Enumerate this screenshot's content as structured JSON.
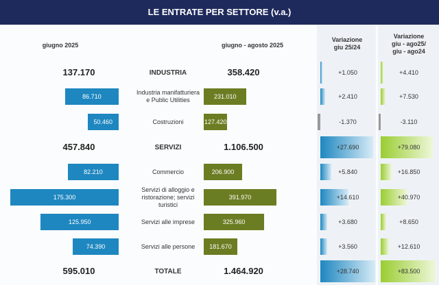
{
  "title": "LE ENTRATE PER SETTORE (v.a.)",
  "headers": {
    "june": [
      "giugno 2025"
    ],
    "period": [
      "giugno  - agosto 2025"
    ],
    "var1": [
      "Variazione",
      "giu 25/24"
    ],
    "var2": [
      "Variazione",
      "giu - ago25/",
      "giu - ago24"
    ]
  },
  "rows": [
    {
      "label": [
        "INDUSTRIA"
      ],
      "total": true,
      "june": 137170,
      "june_label": "137.170",
      "period": 358420,
      "period_label": "358.420",
      "var1": 1050,
      "var1_label": "+1.050",
      "var2": 4410,
      "var2_label": "+4.410"
    },
    {
      "label": [
        "Industria manifatturiera",
        "e Public Utilities"
      ],
      "total": false,
      "june": 86710,
      "june_label": "86.710",
      "period": 231010,
      "period_label": "231.010",
      "var1": 2410,
      "var1_label": "+2.410",
      "var2": 7530,
      "var2_label": "+7.530"
    },
    {
      "label": [
        "Costruzioni"
      ],
      "total": false,
      "june": 50460,
      "june_label": "50.460",
      "period": 127420,
      "period_label": "127.420",
      "var1": -1370,
      "var1_label": "-1.370",
      "var2": -3110,
      "var2_label": "-3.110"
    },
    {
      "label": [
        "SERVIZI"
      ],
      "total": true,
      "june": 457840,
      "june_label": "457.840",
      "period": 1106500,
      "period_label": "1.106.500",
      "var1": 27690,
      "var1_label": "+27.690",
      "var2": 79080,
      "var2_label": "+79.080"
    },
    {
      "label": [
        "Commercio"
      ],
      "total": false,
      "june": 82210,
      "june_label": "82.210",
      "period": 206900,
      "period_label": "206.900",
      "var1": 5840,
      "var1_label": "+5.840",
      "var2": 16850,
      "var2_label": "+16.850"
    },
    {
      "label": [
        "Servizi di alloggio e",
        "ristorazione; servizi",
        "turistici"
      ],
      "total": false,
      "june": 175300,
      "june_label": "175.300",
      "period": 391970,
      "period_label": "391.970",
      "var1": 14610,
      "var1_label": "+14.610",
      "var2": 40970,
      "var2_label": "+40.970"
    },
    {
      "label": [
        "Servizi alle imprese"
      ],
      "total": false,
      "june": 125950,
      "june_label": "125.950",
      "period": 325960,
      "period_label": "325.960",
      "var1": 3680,
      "var1_label": "+3.680",
      "var2": 8650,
      "var2_label": "+8.650"
    },
    {
      "label": [
        "Servizi alle persone"
      ],
      "total": false,
      "june": 74390,
      "june_label": "74.390",
      "period": 181670,
      "period_label": "181.670",
      "var1": 3560,
      "var1_label": "+3.560",
      "var2": 12610,
      "var2_label": "+12.610"
    },
    {
      "label": [
        "TOTALE"
      ],
      "total": true,
      "june": 595010,
      "june_label": "595.010",
      "period": 1464920,
      "period_label": "1.464.920",
      "var1": 28740,
      "var1_label": "+28.740",
      "var2": 83500,
      "var2_label": "+83.500"
    }
  ]
}
